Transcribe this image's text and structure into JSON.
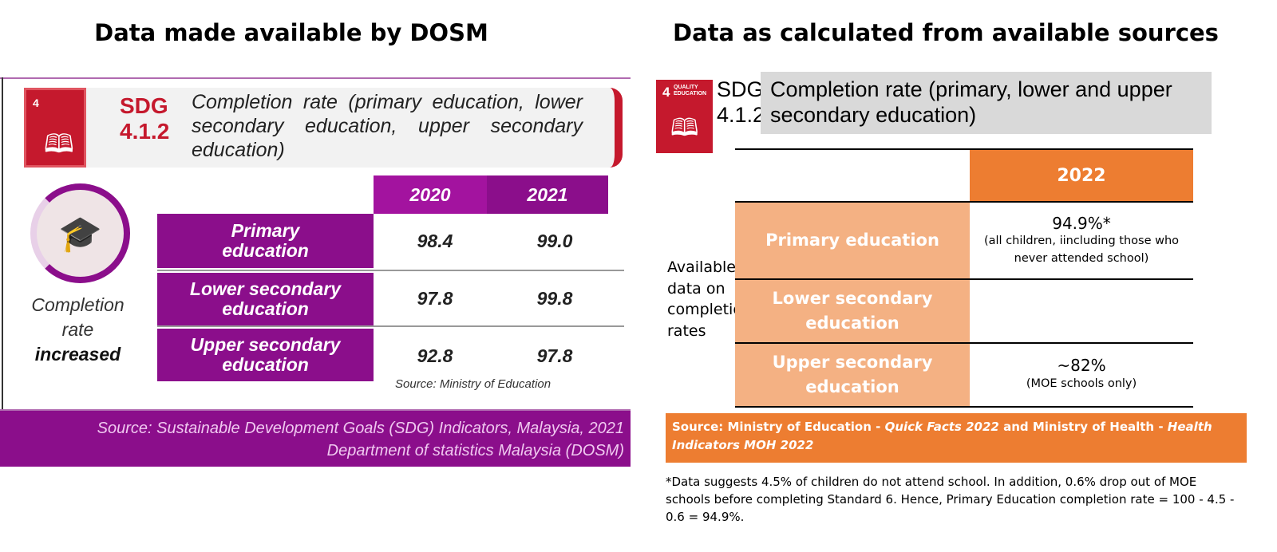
{
  "left": {
    "title": "Data made available by DOSM",
    "sdg_icon": {
      "number": "4",
      "label": "QUALITY EDUCATION"
    },
    "sdg_code_1": "SDG",
    "sdg_code_2": "4.1.2",
    "indicator": "Completion rate (primary education, lower secondary education, upper secondary education)",
    "side_text": {
      "line1": "Completion",
      "line2": "rate",
      "line3": "increased"
    },
    "columns": [
      "2020",
      "2021"
    ],
    "rows": [
      {
        "label": "Primary education",
        "values": [
          "98.4",
          "99.0"
        ]
      },
      {
        "label": "Lower secondary education",
        "values": [
          "97.8",
          "99.8"
        ]
      },
      {
        "label": "Upper secondary education",
        "values": [
          "92.8",
          "97.8"
        ]
      }
    ],
    "table_source": "Source: Ministry of Education",
    "footer_line1": "Source: Sustainable Development Goals (SDG) Indicators, Malaysia, 2021",
    "footer_line2": "Department of statistics Malaysia (DOSM)",
    "colors": {
      "purple": "#8b0e8b",
      "purple_light": "#a3139f",
      "sdg_red": "#c5192d"
    }
  },
  "right": {
    "title": "Data as calculated from available sources",
    "sdg_icon": {
      "number": "4",
      "label": "QUALITY EDUCATION"
    },
    "sdg_code_1": "SDG",
    "sdg_code_2": "4.1.2",
    "indicator": "Completion rate (primary, lower and upper secondary education)",
    "side_label": "Available data on completion rates",
    "column": "2022",
    "rows": [
      {
        "label": "Primary education",
        "value": "94.9%*",
        "note": "(all children, iincluding those who never attended school)"
      },
      {
        "label": "Lower secondary education",
        "value": "",
        "note": ""
      },
      {
        "label": "Upper secondary education",
        "value": "~82%",
        "note": "(MOE schools only)"
      }
    ],
    "source": {
      "p1": "Source: Ministry of Education - ",
      "p2": "Quick Facts 2022",
      "p3": " and Ministry of Health - ",
      "p4": "Health Indicators MOH 2022"
    },
    "footnote": "*Data suggests 4.5% of children do not attend school. In addition, 0.6% drop out of MOE schools before completing Standard 6. Hence, Primary Education completion rate = 100 - 4.5 - 0.6 = 94.9%.",
    "colors": {
      "orange": "#ed7d31",
      "peach": "#f4b183",
      "gray": "#d9d9d9"
    }
  }
}
